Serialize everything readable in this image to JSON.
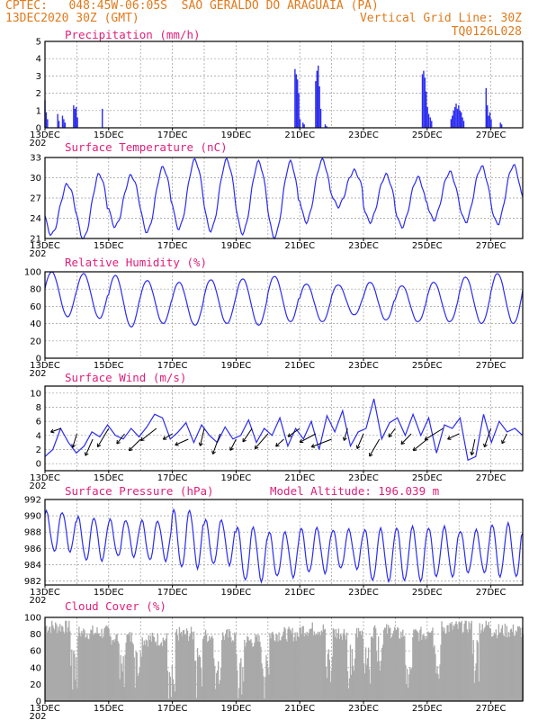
{
  "header": {
    "line1": "CPTEC:   048:45W-06:05S  SAO GERALDO DO ARAGUAIA (PA)",
    "line2": "13DEC2020 30Z (GMT)",
    "grid_note": "Vertical Grid Line: 30Z",
    "code": "TQ0126L028"
  },
  "colors": {
    "series": "#2c2cf0",
    "title": "#e0207a",
    "header": "#e07a1c",
    "cloud": "#a9a9a9",
    "grid": "#9a9a9a"
  },
  "x_axis": {
    "labels": [
      "13DEC",
      "15DEC",
      "17DEC",
      "19DEC",
      "21DEC",
      "23DEC",
      "25DEC",
      "27DEC"
    ],
    "year_stub": "202"
  },
  "chart_data": [
    {
      "type": "bar",
      "title": "Precipitation (mm/h)",
      "ylim": [
        0,
        5
      ],
      "yticks": [
        "0",
        "1",
        "2",
        "3",
        "4",
        "5"
      ],
      "bursts": [
        {
          "day": 13.0,
          "values": [
            1.6,
            0.9,
            0.5
          ]
        },
        {
          "day": 13.4,
          "values": [
            0.8,
            0.4
          ]
        },
        {
          "day": 13.55,
          "values": [
            0.7,
            0.5,
            0.3
          ]
        },
        {
          "day": 13.9,
          "values": [
            1.3,
            1.1,
            1.2,
            0.6
          ]
        },
        {
          "day": 14.8,
          "values": [
            1.1
          ]
        },
        {
          "day": 20.85,
          "values": [
            3.4,
            3.1,
            2.8,
            2.0,
            0.5
          ]
        },
        {
          "day": 21.1,
          "values": [
            0.3,
            0.2
          ]
        },
        {
          "day": 21.5,
          "values": [
            2.7,
            3.3,
            3.6,
            2.4,
            1.1
          ]
        },
        {
          "day": 21.8,
          "values": [
            0.2,
            0.1
          ]
        },
        {
          "day": 24.85,
          "values": [
            3.1,
            3.3,
            2.9,
            2.1,
            1.2,
            0.8
          ]
        },
        {
          "day": 25.1,
          "values": [
            0.6,
            0.4
          ]
        },
        {
          "day": 25.75,
          "values": [
            0.5,
            0.7,
            1.0,
            1.2,
            1.4,
            1.1,
            1.3,
            1.0,
            0.9,
            0.6,
            0.4
          ]
        },
        {
          "day": 26.85,
          "values": [
            2.3,
            1.3,
            0.7,
            0.9,
            0.5
          ]
        },
        {
          "day": 27.3,
          "values": [
            0.3,
            0.2
          ]
        }
      ]
    },
    {
      "type": "line",
      "title": "Surface Temperature (nC)",
      "ylim": [
        21,
        33
      ],
      "yticks": [
        "21",
        "24",
        "27",
        "30",
        "33"
      ],
      "daily_max": [
        29.0,
        30.5,
        30.3,
        31.5,
        32.6,
        32.6,
        32.3,
        32.3,
        32.6,
        31.0,
        30.4,
        30.0,
        30.8,
        31.6,
        31.8,
        32.4
      ],
      "daily_min": [
        21.6,
        21.0,
        22.8,
        22.0,
        22.5,
        22.2,
        21.8,
        21.2,
        23.5,
        25.8,
        23.5,
        22.8,
        23.8,
        23.5,
        23.2,
        24.0
      ]
    },
    {
      "type": "line",
      "title": "Relative Humidity (%)",
      "ylim": [
        0,
        100
      ],
      "yticks": [
        "0",
        "20",
        "40",
        "60",
        "80",
        "100"
      ],
      "daily_max": [
        100,
        98,
        96,
        90,
        88,
        91,
        92,
        95,
        86,
        85,
        88,
        84,
        88,
        94,
        98,
        100
      ],
      "daily_min": [
        48,
        46,
        36,
        40,
        38,
        40,
        38,
        42,
        42,
        50,
        44,
        42,
        42,
        40,
        40,
        42
      ]
    },
    {
      "type": "line",
      "title": "Surface Wind (m/s)",
      "ylim": [
        -1,
        11
      ],
      "yticks": [
        "0",
        "2",
        "4",
        "6",
        "8",
        "10"
      ],
      "speed": [
        1.0,
        2.0,
        5.0,
        3.0,
        1.5,
        2.5,
        4.5,
        3.8,
        5.5,
        4.0,
        3.5,
        5.0,
        3.8,
        5.2,
        7.0,
        6.5,
        3.5,
        4.5,
        5.8,
        3.0,
        5.5,
        4.0,
        3.0,
        5.2,
        3.5,
        4.0,
        6.2,
        3.0,
        5.0,
        4.0,
        6.5,
        2.5,
        5.0,
        3.5,
        6.0,
        2.0,
        6.8,
        4.5,
        7.5,
        2.5,
        4.5,
        5.0,
        9.2,
        3.5,
        5.8,
        6.5,
        4.0,
        7.0,
        4.0,
        6.5,
        1.5,
        5.5,
        5.0,
        6.5,
        0.5,
        1.0,
        7.0,
        3.0,
        6.0,
        4.5,
        5.0,
        4.0
      ]
    },
    {
      "type": "line",
      "title": "Surface Pressure (hPa)",
      "annotation": "Model Altitude: 196.039 m",
      "ylim": [
        981.5,
        992
      ],
      "yticks": [
        "982",
        "984",
        "986",
        "988",
        "990",
        "992"
      ],
      "daily_max": [
        990.5,
        989.8,
        989.5,
        989.4,
        990.7,
        989.5,
        988.6,
        988.0,
        988.5,
        988.3,
        988.4,
        988.6,
        988.6,
        988.2,
        989.0,
        988.3
      ],
      "daily_min": [
        985.6,
        984.5,
        985.0,
        984.5,
        983.6,
        984.0,
        982.0,
        982.5,
        983.0,
        983.5,
        982.0,
        982.0,
        982.5,
        983.0,
        982.5,
        981.5
      ]
    },
    {
      "type": "bar",
      "title": "Cloud Cover (%)",
      "ylim": [
        0,
        100
      ],
      "yticks": [
        "0",
        "20",
        "40",
        "60",
        "80",
        "100"
      ],
      "segments": [
        {
          "from": 13.0,
          "to": 14.0,
          "level": 89
        },
        {
          "from": 14.0,
          "to": 15.0,
          "level": 82
        },
        {
          "from": 15.0,
          "to": 16.0,
          "level": 76
        },
        {
          "from": 16.0,
          "to": 17.0,
          "level": 74
        },
        {
          "from": 17.0,
          "to": 18.0,
          "level": 80
        },
        {
          "from": 18.0,
          "to": 19.0,
          "level": 78
        },
        {
          "from": 19.0,
          "to": 20.0,
          "level": 72
        },
        {
          "from": 20.0,
          "to": 21.0,
          "level": 80
        },
        {
          "from": 21.0,
          "to": 22.0,
          "level": 86
        },
        {
          "from": 22.0,
          "to": 23.0,
          "level": 82
        },
        {
          "from": 23.0,
          "to": 24.0,
          "level": 84
        },
        {
          "from": 24.0,
          "to": 25.0,
          "level": 80
        },
        {
          "from": 25.0,
          "to": 26.0,
          "level": 88
        },
        {
          "from": 26.0,
          "to": 27.0,
          "level": 90
        },
        {
          "from": 27.0,
          "to": 28.0,
          "level": 84
        }
      ],
      "dips": [
        13.9,
        15.4,
        15.9,
        16.95,
        17.8,
        18.4,
        19.1,
        19.9,
        21.9,
        22.6,
        23.1,
        23.5,
        24.4,
        25.3,
        26.5
      ]
    }
  ]
}
